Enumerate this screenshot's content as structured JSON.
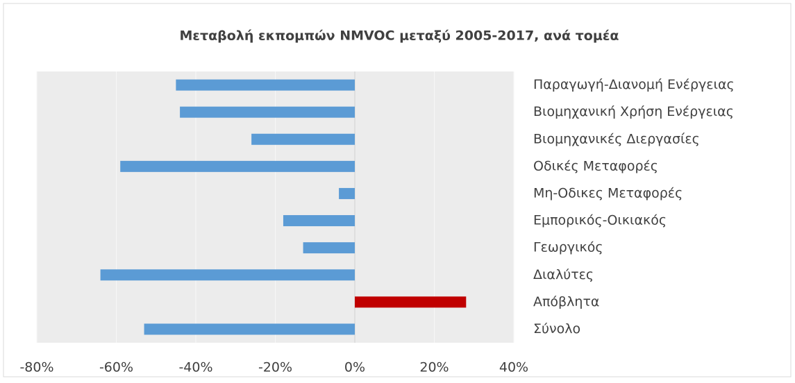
{
  "chart_data": {
    "type": "bar",
    "orientation": "horizontal",
    "title": "Μεταβολή εκπομπών NMVOC μεταξύ 2005-2017,  ανά τομέα",
    "categories": [
      "Παραγωγή-Διανομή Ενέργειας",
      "Βιομηχανική Χρήση Ενέργειας",
      "Βιομηχανικές Διεργασίες",
      "Οδικές Μεταφορές",
      "Μη-Οδικες Μεταφορές",
      "Εμπορικός-Οικιακός",
      "Γεωργικός",
      "Διαλύτες",
      "Απόβλητα",
      "Σύνολο"
    ],
    "values": [
      -45,
      -44,
      -26,
      -59,
      -4,
      -18,
      -13,
      -64,
      28,
      -53
    ],
    "colors": [
      "#5b9bd5",
      "#5b9bd5",
      "#5b9bd5",
      "#5b9bd5",
      "#5b9bd5",
      "#5b9bd5",
      "#5b9bd5",
      "#5b9bd5",
      "#c00000",
      "#5b9bd5"
    ],
    "xlim": [
      -80,
      40
    ],
    "xticks": [
      {
        "value": -80,
        "label": "-80%"
      },
      {
        "value": -60,
        "label": "-60%"
      },
      {
        "value": -40,
        "label": "-40%"
      },
      {
        "value": -20,
        "label": "-20%"
      },
      {
        "value": 0,
        "label": "0%"
      },
      {
        "value": 20,
        "label": "20%"
      },
      {
        "value": 40,
        "label": "40%"
      }
    ],
    "grid": true
  }
}
